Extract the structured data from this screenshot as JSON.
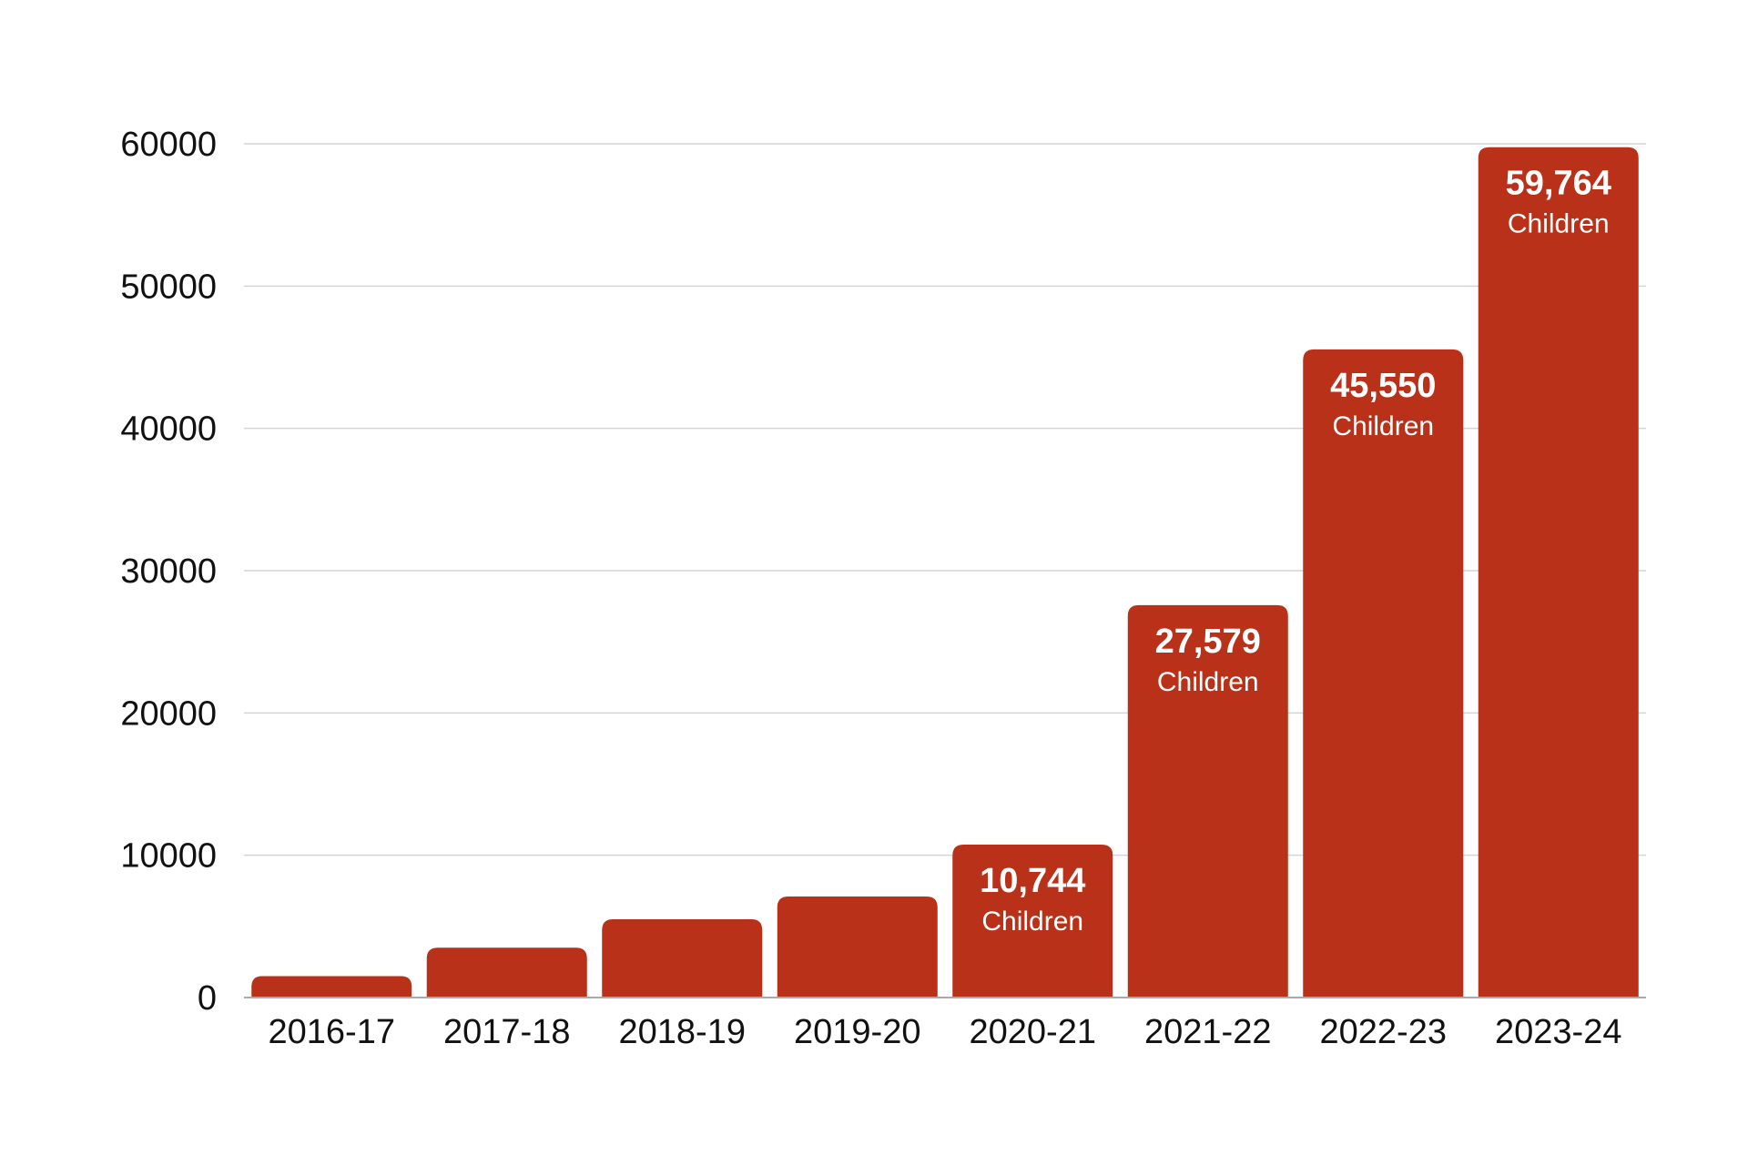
{
  "chart_data": {
    "type": "bar",
    "title": "",
    "xlabel": "",
    "ylabel": "",
    "categories": [
      "2016-17",
      "2017-18",
      "2018-19",
      "2019-20",
      "2020-21",
      "2021-22",
      "2022-23",
      "2023-24"
    ],
    "values": [
      1500,
      3500,
      5500,
      7100,
      10744,
      27579,
      45550,
      59764
    ],
    "data_labels": [
      {
        "index": 4,
        "value": "10,744",
        "unit": "Children"
      },
      {
        "index": 5,
        "value": "27,579",
        "unit": "Children"
      },
      {
        "index": 6,
        "value": "45,550",
        "unit": "Children"
      },
      {
        "index": 7,
        "value": "59,764",
        "unit": "Children"
      }
    ],
    "ylim": [
      0,
      60000
    ],
    "yticks": [
      "0",
      "10000",
      "20000",
      "30000",
      "40000",
      "50000",
      "60000"
    ],
    "grid": true,
    "legend": "none",
    "bar_color": "#b93119"
  }
}
